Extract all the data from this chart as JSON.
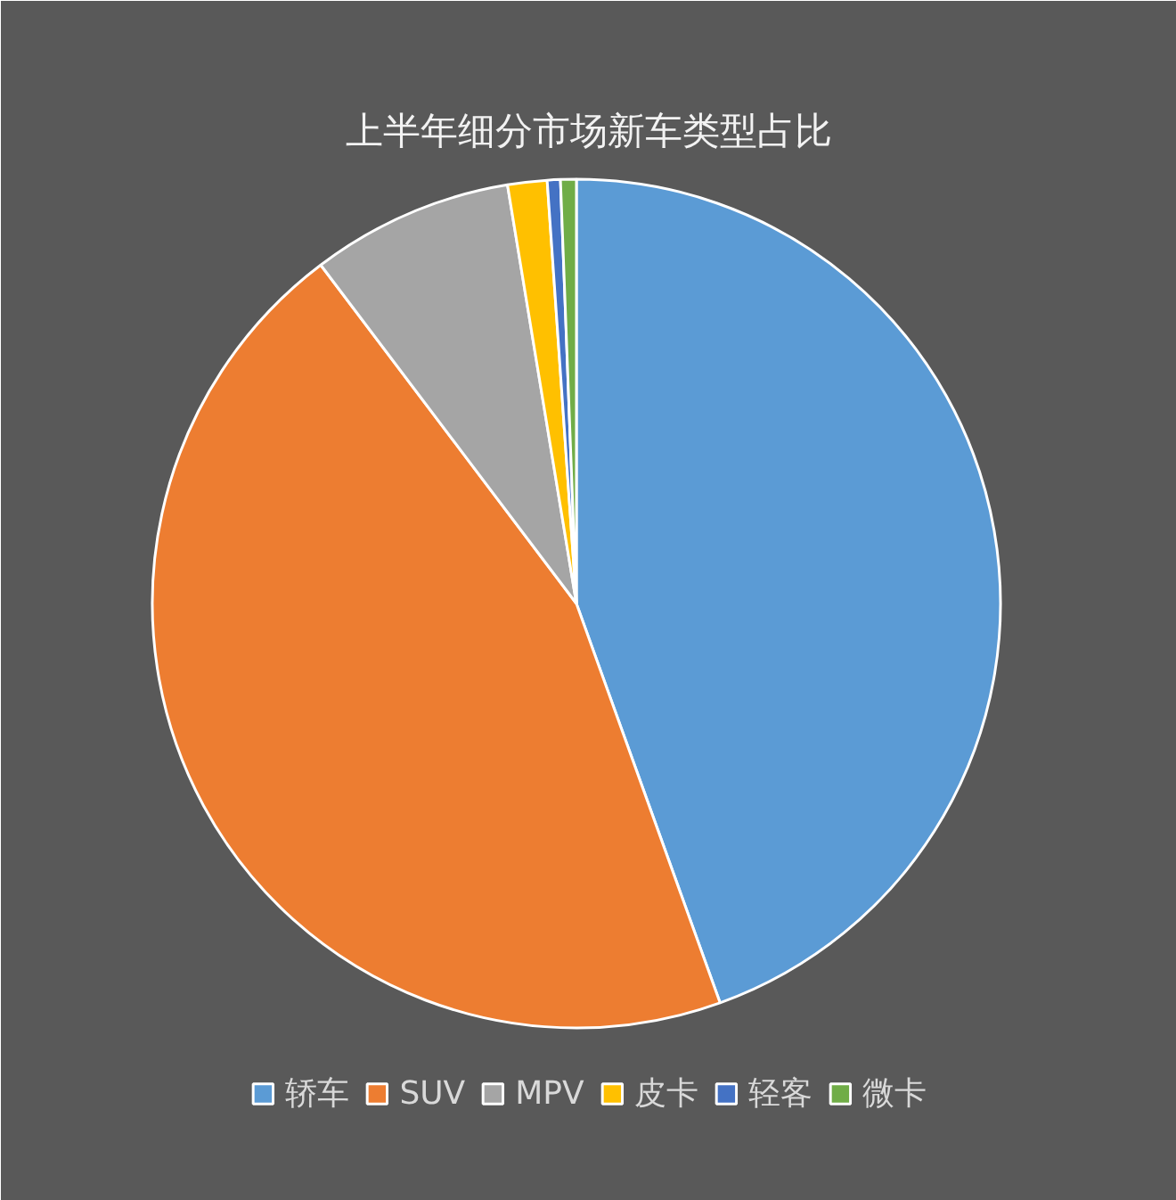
{
  "chart_data": {
    "type": "pie",
    "title": "上半年细分市场新车类型占比",
    "categories": [
      "轿车",
      "SUV",
      "MPV",
      "皮卡",
      "轻客",
      "微卡"
    ],
    "values": [
      44.5,
      45.2,
      7.7,
      1.5,
      0.5,
      0.6
    ],
    "colors": [
      "#5b9bd5",
      "#ed7d31",
      "#a5a5a5",
      "#ffc000",
      "#4472c4",
      "#70ad47"
    ],
    "legend": "bottom"
  }
}
